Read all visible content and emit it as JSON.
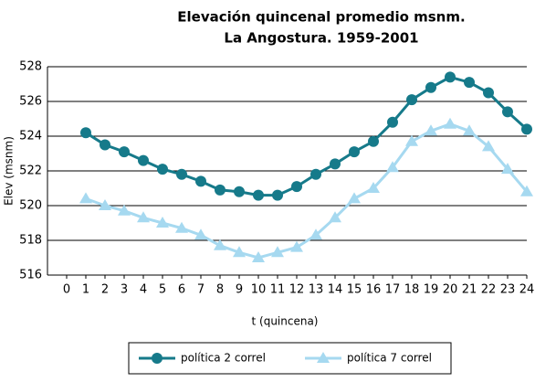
{
  "chart_data": {
    "type": "line",
    "title": [
      "Elevación quincenal promedio  msnm.",
      "La Angostura. 1959-2001"
    ],
    "x_label": "t (quincena)",
    "y_label": "Elev (msnm)",
    "x": [
      1,
      2,
      3,
      4,
      5,
      6,
      7,
      8,
      9,
      10,
      11,
      12,
      13,
      14,
      15,
      16,
      17,
      18,
      19,
      20,
      21,
      22,
      23,
      24
    ],
    "series": [
      {
        "name": "política 2 correl",
        "color": "#167a8a",
        "marker": "circle",
        "values": [
          524.2,
          523.5,
          523.1,
          522.6,
          522.1,
          521.8,
          521.4,
          520.9,
          520.8,
          520.6,
          520.6,
          521.1,
          521.8,
          522.4,
          523.1,
          523.7,
          524.8,
          526.1,
          526.8,
          527.4,
          527.1,
          526.5,
          525.4,
          524.4
        ]
      },
      {
        "name": "política 7 correl",
        "color": "#a6d9f0",
        "marker": "triangle",
        "values": [
          520.4,
          520.0,
          519.7,
          519.3,
          519.0,
          518.7,
          518.3,
          517.7,
          517.3,
          517.0,
          517.3,
          517.6,
          518.3,
          519.3,
          520.4,
          521.0,
          522.2,
          523.7,
          524.3,
          524.7,
          524.3,
          523.4,
          522.1,
          520.8
        ]
      }
    ],
    "xlim": [
      -1,
      24
    ],
    "xticks": [
      0,
      1,
      2,
      3,
      4,
      5,
      6,
      7,
      8,
      9,
      10,
      11,
      12,
      13,
      14,
      15,
      16,
      17,
      18,
      19,
      20,
      21,
      22,
      23,
      24
    ],
    "ylim": [
      516,
      528
    ],
    "yticks": [
      516,
      518,
      520,
      522,
      524,
      526,
      528
    ],
    "grid": true,
    "legend": "bottom"
  }
}
